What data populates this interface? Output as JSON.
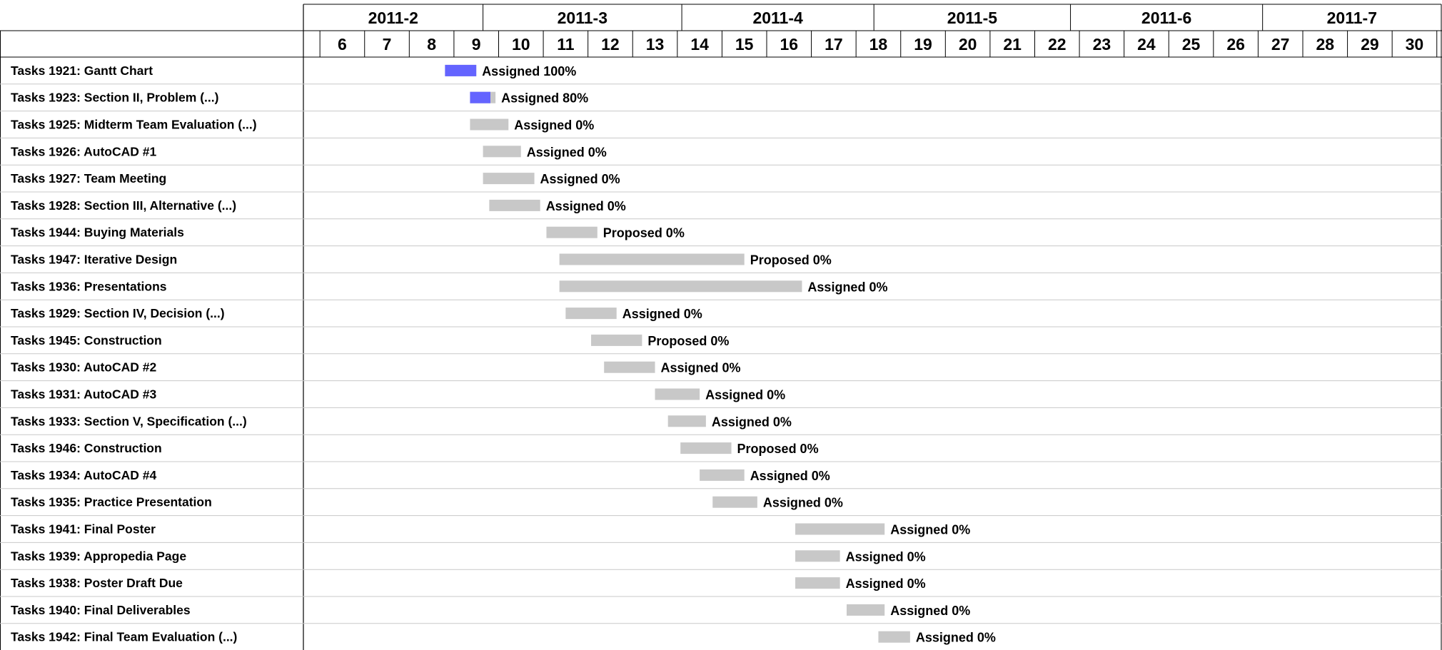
{
  "chart_data": {
    "type": "gantt",
    "months": [
      "2011-2",
      "2011-3",
      "2011-4",
      "2011-5",
      "2011-6",
      "2011-7"
    ],
    "weeks": [
      6,
      7,
      8,
      9,
      10,
      11,
      12,
      13,
      14,
      15,
      16,
      17,
      18,
      19,
      20,
      21,
      22,
      23,
      24,
      25,
      26,
      27,
      28,
      29,
      30
    ],
    "week_range": [
      5.13,
      30.6
    ],
    "month_starts": [
      5.13,
      9.15,
      13.6,
      17.9,
      22.3,
      26.6
    ],
    "colors": {
      "bar": "#c8c8c8",
      "progress": "#6464ff",
      "grid": "#c8c8c8",
      "border": "#000000"
    },
    "tasks": [
      {
        "label": "Tasks 1921: Gantt Chart",
        "start": 8.3,
        "end": 9.0,
        "status": "Assigned",
        "percent": 100
      },
      {
        "label": "Tasks 1923: Section II, Problem  (...)",
        "start": 8.86,
        "end": 9.43,
        "status": "Assigned",
        "percent": 80
      },
      {
        "label": "Tasks 1925: Midterm Team Evaluation  (...)",
        "start": 8.86,
        "end": 9.72,
        "status": "Assigned",
        "percent": 0
      },
      {
        "label": "Tasks 1926: AutoCAD #1",
        "start": 9.15,
        "end": 10.0,
        "status": "Assigned",
        "percent": 0
      },
      {
        "label": "Tasks 1927: Team Meeting",
        "start": 9.15,
        "end": 10.3,
        "status": "Assigned",
        "percent": 0
      },
      {
        "label": "Tasks 1928: Section III, Alternative  (...)",
        "start": 9.29,
        "end": 10.43,
        "status": "Assigned",
        "percent": 0
      },
      {
        "label": "Tasks 1944: Buying Materials",
        "start": 10.57,
        "end": 11.71,
        "status": "Proposed",
        "percent": 0
      },
      {
        "label": "Tasks 1947: Iterative Design",
        "start": 10.86,
        "end": 15.0,
        "status": "Proposed",
        "percent": 0
      },
      {
        "label": "Tasks 1936: Presentations",
        "start": 10.86,
        "end": 16.29,
        "status": "Assigned",
        "percent": 0
      },
      {
        "label": "Tasks 1929: Section IV, Decision  (...)",
        "start": 11.0,
        "end": 12.14,
        "status": "Assigned",
        "percent": 0
      },
      {
        "label": "Tasks 1945: Construction",
        "start": 11.57,
        "end": 12.71,
        "status": "Proposed",
        "percent": 0
      },
      {
        "label": "Tasks 1930: AutoCAD #2",
        "start": 11.86,
        "end": 13.0,
        "status": "Assigned",
        "percent": 0
      },
      {
        "label": "Tasks 1931: AutoCAD #3",
        "start": 13.0,
        "end": 14.0,
        "status": "Assigned",
        "percent": 0
      },
      {
        "label": "Tasks 1933: Section V, Specification  (...)",
        "start": 13.29,
        "end": 14.14,
        "status": "Assigned",
        "percent": 0
      },
      {
        "label": "Tasks 1946: Construction",
        "start": 13.57,
        "end": 14.71,
        "status": "Proposed",
        "percent": 0
      },
      {
        "label": "Tasks 1934: AutoCAD #4",
        "start": 14.0,
        "end": 15.0,
        "status": "Assigned",
        "percent": 0
      },
      {
        "label": "Tasks 1935: Practice Presentation",
        "start": 14.29,
        "end": 15.29,
        "status": "Assigned",
        "percent": 0
      },
      {
        "label": "Tasks 1941: Final Poster",
        "start": 16.14,
        "end": 18.14,
        "status": "Assigned",
        "percent": 0
      },
      {
        "label": "Tasks 1939: Appropedia Page",
        "start": 16.14,
        "end": 17.14,
        "status": "Assigned",
        "percent": 0
      },
      {
        "label": "Tasks 1938: Poster Draft Due",
        "start": 16.14,
        "end": 17.14,
        "status": "Assigned",
        "percent": 0
      },
      {
        "label": "Tasks 1940: Final Deliverables",
        "start": 17.29,
        "end": 18.14,
        "status": "Assigned",
        "percent": 0
      },
      {
        "label": "Tasks 1942: Final Team Evaluation  (...)",
        "start": 18.0,
        "end": 18.71,
        "status": "Assigned",
        "percent": 0
      }
    ]
  }
}
